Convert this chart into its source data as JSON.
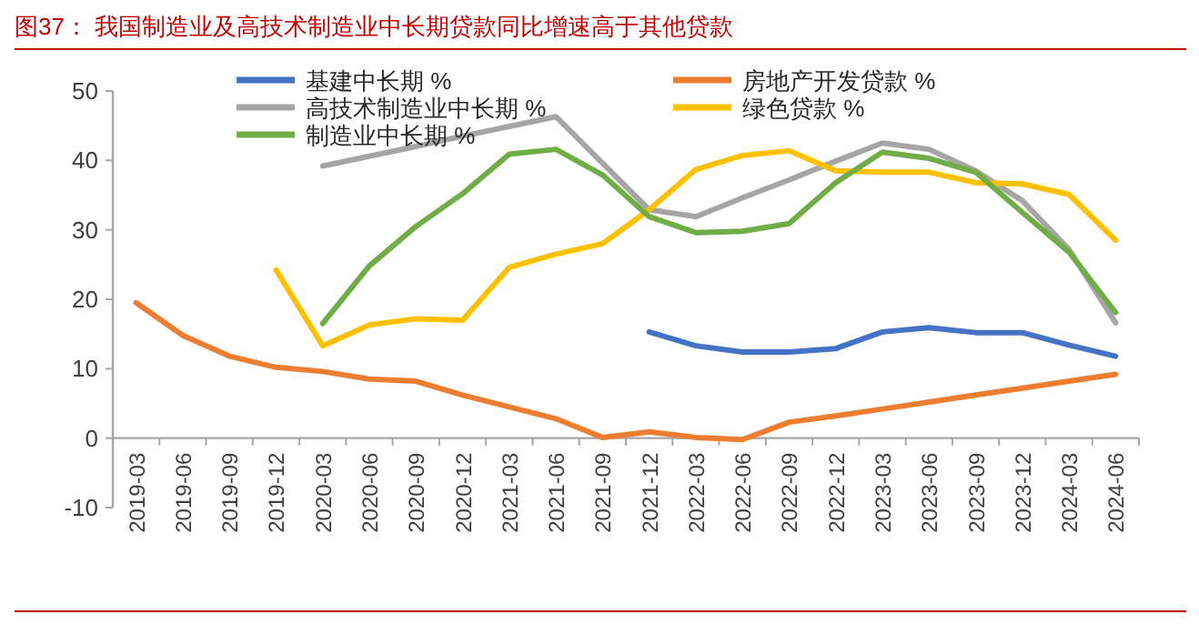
{
  "chart_data": {
    "type": "line",
    "title": "图37：  我国制造业及高技术制造业中长期贷款同比增速高于其他贷款",
    "categories": [
      "2019-03",
      "2019-06",
      "2019-09",
      "2019-12",
      "2020-03",
      "2020-06",
      "2020-09",
      "2020-12",
      "2021-03",
      "2021-06",
      "2021-09",
      "2021-12",
      "2022-03",
      "2022-06",
      "2022-09",
      "2022-12",
      "2023-03",
      "2023-06",
      "2023-09",
      "2023-12",
      "2024-03",
      "2024-06"
    ],
    "series": [
      {
        "name": "基建中长期 %",
        "color": "#4472c4",
        "values": [
          null,
          null,
          null,
          null,
          null,
          null,
          null,
          null,
          null,
          null,
          null,
          15.3,
          13.3,
          12.4,
          12.4,
          12.9,
          15.3,
          15.9,
          15.2,
          15.2,
          13.4,
          11.8
        ]
      },
      {
        "name": "房地产开发贷款 %",
        "color": "#ed7d31",
        "values": [
          19.5,
          14.8,
          11.8,
          10.2,
          9.6,
          8.5,
          8.2,
          6.2,
          4.5,
          2.8,
          0.1,
          0.9,
          0.1,
          -0.2,
          2.3,
          3.2,
          4.2,
          5.2,
          6.2,
          7.2,
          8.2,
          9.2
        ]
      },
      {
        "name": "高技术制造业中长期 %",
        "color": "#a5a5a5",
        "values": [
          null,
          null,
          null,
          null,
          39.2,
          40.6,
          42.0,
          43.5,
          44.9,
          46.3,
          39.6,
          32.9,
          31.9,
          34.6,
          37.2,
          39.9,
          42.5,
          41.6,
          38.5,
          34.2,
          27.2,
          16.6
        ]
      },
      {
        "name": "绿色贷款 %",
        "color": "#ffc000",
        "values": [
          null,
          null,
          null,
          24.2,
          13.3,
          16.3,
          17.2,
          17.0,
          24.6,
          26.5,
          28.0,
          32.9,
          38.7,
          40.7,
          41.4,
          38.5,
          38.3,
          38.3,
          36.8,
          36.6,
          35.1,
          28.5
        ]
      },
      {
        "name": "制造业中长期 %",
        "color": "#70ad47",
        "values": [
          null,
          null,
          null,
          null,
          16.5,
          24.8,
          30.5,
          35.2,
          40.9,
          41.6,
          37.9,
          31.9,
          29.6,
          29.8,
          30.9,
          36.8,
          41.2,
          40.3,
          38.3,
          32.5,
          26.8,
          18.1
        ]
      }
    ],
    "ylim": [
      -10,
      50
    ],
    "yticks": [
      -10,
      0,
      10,
      20,
      30,
      40,
      50
    ],
    "grid": false,
    "legend": "top"
  }
}
